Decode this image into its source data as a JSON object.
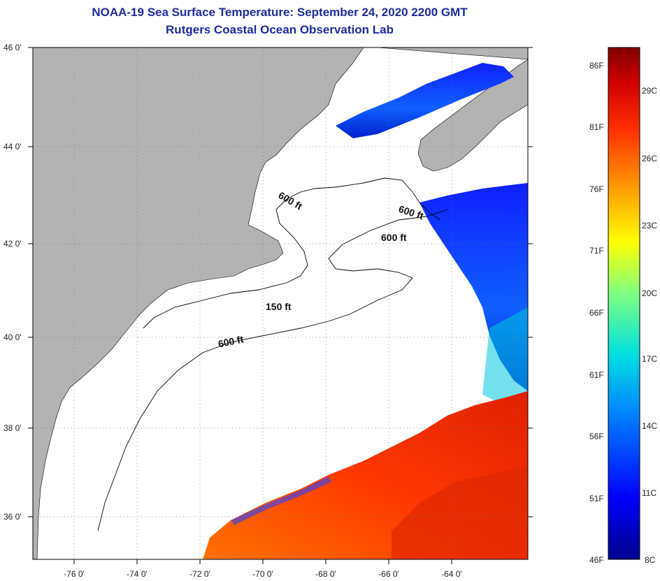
{
  "header": {
    "title": "NOAA-19 Sea Surface Temperature:  September 24, 2020 2200 GMT",
    "subtitle": "Rutgers Coastal Ocean Observation Lab"
  },
  "map": {
    "lat_labels": [
      "46 0'",
      "44 0'",
      "42 0'",
      "40 0'",
      "38 0'",
      "36 0'"
    ],
    "lon_labels": [
      "-76 0'",
      "-74 0'",
      "-72 0'",
      "-70 0'",
      "-68 0'",
      "-66 0'",
      "-64 0'"
    ],
    "depth_contours": [
      "600 ft",
      "600 ft",
      "600 ft",
      "150 ft",
      "600 ft"
    ]
  },
  "colorbar": {
    "fahrenheit": [
      "86F",
      "81F",
      "76F",
      "71F",
      "66F",
      "61F",
      "56F",
      "51F",
      "46F"
    ],
    "celsius": [
      "29C",
      "26C",
      "23C",
      "20C",
      "17C",
      "14C",
      "11C",
      "8C"
    ]
  },
  "colors": {
    "land": "#b3b3b3",
    "title": "#1f2aa0",
    "cold": "#00008b",
    "warm": "#ff4500",
    "hot": "#800000"
  }
}
